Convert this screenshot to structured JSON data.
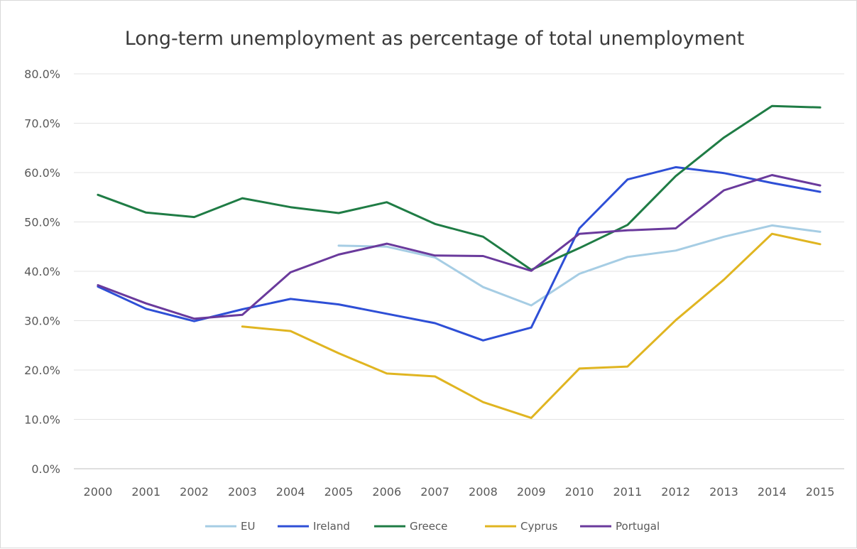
{
  "chart_data": {
    "type": "line",
    "title": "Long-term unemployment as percentage of total unemployment",
    "xlabel": "",
    "ylabel": "",
    "ylim": [
      0,
      80
    ],
    "y_ticks": [
      "0.0%",
      "10.0%",
      "20.0%",
      "30.0%",
      "40.0%",
      "50.0%",
      "60.0%",
      "70.0%",
      "80.0%"
    ],
    "y_tick_values": [
      0,
      10,
      20,
      30,
      40,
      50,
      60,
      70,
      80
    ],
    "categories": [
      "2000",
      "2001",
      "2002",
      "2003",
      "2004",
      "2005",
      "2006",
      "2007",
      "2008",
      "2009",
      "2010",
      "2011",
      "2012",
      "2013",
      "2014",
      "2015"
    ],
    "grid": true,
    "legend_position": "bottom",
    "series": [
      {
        "name": "EU",
        "color": "#a6cde4",
        "values": [
          null,
          null,
          null,
          null,
          null,
          45.2,
          45.0,
          42.8,
          36.8,
          33.1,
          39.5,
          42.9,
          44.2,
          47.0,
          49.3,
          48.0
        ]
      },
      {
        "name": "Ireland",
        "color": "#2e4fd6",
        "values": [
          36.9,
          32.4,
          29.9,
          32.3,
          34.4,
          33.3,
          31.4,
          29.5,
          26.0,
          28.6,
          48.7,
          58.6,
          61.1,
          59.9,
          57.9,
          56.1
        ]
      },
      {
        "name": "Greece",
        "color": "#1f7c45",
        "values": [
          55.5,
          51.9,
          51.0,
          54.8,
          53.0,
          51.8,
          54.0,
          49.6,
          47.0,
          40.3,
          44.7,
          49.4,
          59.3,
          67.1,
          73.5,
          73.2
        ]
      },
      {
        "name": "Cyprus",
        "color": "#e0b521",
        "values": [
          null,
          null,
          null,
          28.8,
          27.9,
          23.4,
          19.3,
          18.7,
          13.5,
          10.3,
          20.3,
          20.7,
          30.1,
          38.3,
          47.6,
          45.5
        ]
      },
      {
        "name": "Portugal",
        "color": "#6a3a9c",
        "values": [
          37.2,
          33.5,
          30.4,
          31.2,
          39.8,
          43.4,
          45.6,
          43.2,
          43.1,
          40.1,
          47.6,
          48.3,
          48.7,
          56.4,
          59.5,
          57.4
        ]
      }
    ]
  }
}
